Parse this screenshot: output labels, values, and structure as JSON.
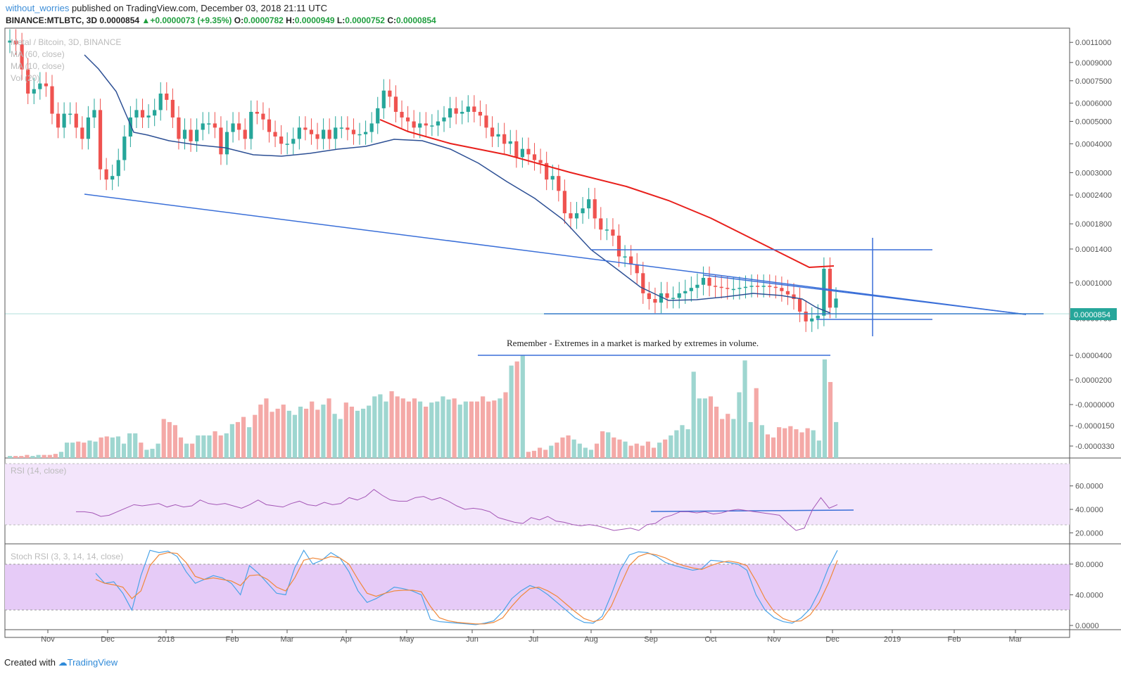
{
  "header": {
    "user": "without_worries",
    "published": "published on TradingView.com, December 03, 2018 21:11 UTC",
    "symbol": "BINANCE:MTLBTC, 3D",
    "last": "0.0000854",
    "change": "+0.0000073 (+9.35%)",
    "o_label": "O:",
    "o": "0.0000782",
    "h_label": "H:",
    "h": "0.0000949",
    "l_label": "L:",
    "l": "0.0000752",
    "c_label": "C:",
    "c": "0.0000854"
  },
  "legend": {
    "title": "Metal / Bitcoin, 3D, BINANCE",
    "ma1": "MA (60, close)",
    "ma2": "MA (10, close)",
    "vol": "Vol (20)",
    "rsi": "RSI (14, close)",
    "stoch": "Stoch RSI (3, 3, 14, 14, close)"
  },
  "annotation": "Remember - Extremes in a market is marked by extremes in volume.",
  "price_badge": "0.0000854",
  "footer": {
    "created": "Created with",
    "brand": "TradingView"
  },
  "colors": {
    "up": "#26a69a",
    "down": "#ef5350",
    "ma_slow": "#e8201c",
    "ma_fast": "#2c4f94",
    "trend": "#3a6fd8",
    "rsi_line": "#a457b6",
    "rsi_band": "#f3e5fb",
    "stoch_band": "#e6cbf7",
    "stoch_k": "#4aa3e8",
    "stoch_d": "#f0883a"
  },
  "chart_data": [
    {
      "type": "candlestick",
      "title": "Metal / Bitcoin, 3D, BINANCE",
      "y_axis_ticks": [
        "0.0011000",
        "0.0009000",
        "0.0007500",
        "0.0006000",
        "0.0005000",
        "0.0004000",
        "0.0003000",
        "0.0002400",
        "0.0001800",
        "0.0001400",
        "0.0001000",
        "0.0000700"
      ],
      "x_axis_ticks": [
        "Nov",
        "Dec",
        "2018",
        "Feb",
        "Mar",
        "Apr",
        "May",
        "Jun",
        "Jul",
        "Aug",
        "Sep",
        "Oct",
        "Nov",
        "Dec",
        "2019",
        "Feb",
        "Mar"
      ],
      "last_price": 8.54e-05,
      "close_series": [
        0.00112,
        0.00108,
        0.00084,
        0.00066,
        0.00069,
        0.00073,
        0.00071,
        0.00054,
        0.00047,
        0.00054,
        0.00054,
        0.00047,
        0.00042,
        0.00052,
        0.00056,
        0.00031,
        0.00028,
        0.00029,
        0.00034,
        0.00043,
        0.00052,
        0.00056,
        0.00052,
        0.00053,
        0.00056,
        0.00066,
        0.00062,
        0.00052,
        0.00042,
        0.00046,
        0.00041,
        0.00046,
        0.00049,
        0.00049,
        0.00047,
        0.00036,
        0.00045,
        0.00049,
        0.00046,
        0.00042,
        0.00055,
        0.00054,
        0.00051,
        0.00045,
        0.00043,
        0.0004,
        0.0004,
        0.00042,
        0.00047,
        0.00046,
        0.00044,
        0.00042,
        0.00046,
        0.00042,
        0.00047,
        0.00047,
        0.00046,
        0.00044,
        0.00044,
        0.00045,
        0.00049,
        0.00057,
        0.00068,
        0.00064,
        0.00055,
        0.00052,
        0.0005,
        0.00047,
        0.00049,
        0.00048,
        0.00048,
        0.0005,
        0.00052,
        0.00057,
        0.00054,
        0.00055,
        0.00058,
        0.00055,
        0.00053,
        0.00047,
        0.00043,
        0.00044,
        0.0004,
        0.00041,
        0.00035,
        0.00038,
        0.00036,
        0.00034,
        0.00033,
        0.00028,
        0.00029,
        0.00025,
        0.0002,
        0.00019,
        0.0002,
        0.00021,
        0.00023,
        0.00019,
        0.00017,
        0.00017,
        0.00016,
        0.00013,
        0.00013,
        0.00012,
        0.00011,
        9e-05,
        8.5e-05,
        8.2e-05,
        9e-05,
        8.6e-05,
        8.6e-05,
        9e-05,
        9.2e-05,
        9.5e-05,
        9.8e-05,
        0.000105,
        9.7e-05,
        9.6e-05,
        9.5e-05,
        9.4e-05,
        9.4e-05,
        9.5e-05,
        9.6e-05,
        9.7e-05,
        9.6e-05,
        9.7e-05,
        9.6e-05,
        9.5e-05,
        9.2e-05,
        8.9e-05,
        8.5e-05,
        7.5e-05,
        6.8e-05,
        7e-05,
        7.2e-05,
        0.000115,
        7.8e-05,
        8.54e-05
      ],
      "ma_60": [
        0.00059,
        0.00057,
        0.00054,
        0.0005,
        0.00046,
        0.00042,
        0.00038,
        0.00034,
        0.00031,
        0.00028,
        0.00025,
        0.00022,
        0.00019,
        0.00016
      ],
      "ma_10": [
        0.00095,
        0.00085,
        0.00064,
        0.00053,
        0.00052,
        0.00049,
        0.00046,
        0.00048,
        0.00051,
        0.00053,
        0.00047,
        0.00034,
        0.00022,
        0.00014,
        9.5e-05,
        9.6e-05,
        9.8e-05,
        9.6e-05,
        9.4e-05,
        8.5e-05
      ]
    },
    {
      "type": "bar",
      "title": "Vol (20)",
      "y_axis_ticks": [
        "0.0000400",
        "0.0000200",
        "-0.0000000",
        "-0.0000150",
        "-0.0000330"
      ],
      "values": [
        2,
        2,
        2,
        3,
        2,
        3,
        3,
        3,
        4,
        6,
        15,
        15,
        16,
        15,
        17,
        16,
        20,
        21,
        20,
        21,
        14,
        24,
        24,
        15,
        8,
        9,
        14,
        38,
        35,
        32,
        20,
        14,
        14,
        22,
        22,
        22,
        26,
        22,
        24,
        33,
        35,
        40,
        30,
        42,
        52,
        58,
        45,
        48,
        52,
        46,
        42,
        50,
        48,
        55,
        47,
        52,
        58,
        43,
        38,
        54,
        50,
        46,
        48,
        51,
        60,
        62,
        55,
        65,
        60,
        58,
        55,
        58,
        55,
        50,
        54,
        55,
        60,
        57,
        58,
        52,
        55,
        55,
        55,
        60,
        55,
        56,
        58,
        64,
        90,
        94,
        100,
        6,
        7,
        10,
        8,
        12,
        15,
        20,
        22,
        18,
        14,
        10,
        8,
        14,
        26,
        25,
        20,
        18,
        16,
        12,
        14,
        12,
        16,
        10,
        15,
        18,
        22,
        27,
        32,
        28,
        84,
        58,
        58,
        60,
        50,
        38,
        43,
        38,
        64,
        95,
        35,
        68,
        32,
        23,
        20,
        30,
        29,
        31,
        28,
        25,
        29,
        27,
        17,
        96,
        74,
        35
      ]
    },
    {
      "type": "line",
      "title": "RSI (14, close)",
      "y_axis_ticks": [
        "60.0000",
        "40.0000",
        "20.0000"
      ],
      "values": [
        38,
        38,
        37,
        34,
        35,
        38,
        41,
        44,
        43,
        44,
        45,
        42,
        44,
        42,
        43,
        48,
        45,
        44,
        45,
        43,
        41,
        44,
        48,
        44,
        43,
        42,
        45,
        47,
        44,
        43,
        46,
        44,
        45,
        50,
        48,
        51,
        57,
        52,
        48,
        47,
        47,
        50,
        51,
        48,
        50,
        47,
        43,
        40,
        41,
        40,
        38,
        33,
        31,
        29,
        28,
        33,
        31,
        34,
        30,
        29,
        27,
        26,
        27,
        26,
        24,
        22,
        23,
        24,
        22,
        27,
        28,
        33,
        35,
        38,
        38,
        37,
        38,
        36,
        37,
        39,
        40,
        39,
        38,
        37,
        36,
        35,
        28,
        22,
        24,
        40,
        50,
        41,
        44
      ],
      "bands": [
        70,
        30
      ]
    },
    {
      "type": "line",
      "title": "Stoch RSI (3, 3, 14, 14, close)",
      "y_axis_ticks": [
        "80.0000",
        "40.0000",
        "0.0000"
      ],
      "bands": [
        80,
        20
      ],
      "series": [
        {
          "values": [
            68,
            55,
            57,
            42,
            20,
            65,
            98,
            95,
            97,
            90,
            70,
            55,
            60,
            65,
            62,
            55,
            40,
            78,
            68,
            55,
            42,
            40,
            75,
            98,
            80,
            85,
            95,
            88,
            70,
            45,
            30,
            35,
            42,
            50,
            48,
            45,
            40,
            8,
            5,
            4,
            3,
            2,
            1,
            3,
            6,
            18,
            35,
            45,
            52,
            48,
            40,
            30,
            20,
            10,
            4,
            3,
            12,
            40,
            72,
            92,
            96,
            95,
            90,
            82,
            78,
            75,
            72,
            74,
            85,
            84,
            82,
            80,
            72,
            40,
            20,
            10,
            5,
            3,
            10,
            22,
            45,
            75,
            98
          ]
        },
        {
          "values": [
            60,
            55,
            53,
            50,
            35,
            45,
            78,
            92,
            95,
            94,
            82,
            64,
            60,
            62,
            60,
            58,
            52,
            65,
            66,
            60,
            50,
            45,
            62,
            85,
            88,
            86,
            90,
            88,
            80,
            60,
            42,
            38,
            42,
            45,
            46,
            46,
            44,
            25,
            10,
            6,
            4,
            3,
            2,
            2,
            4,
            10,
            25,
            38,
            48,
            50,
            45,
            38,
            28,
            18,
            9,
            5,
            8,
            25,
            52,
            78,
            90,
            94,
            92,
            88,
            82,
            78,
            75,
            73,
            78,
            82,
            84,
            82,
            78,
            58,
            35,
            18,
            9,
            5,
            6,
            14,
            30,
            55,
            85
          ]
        }
      ]
    }
  ]
}
